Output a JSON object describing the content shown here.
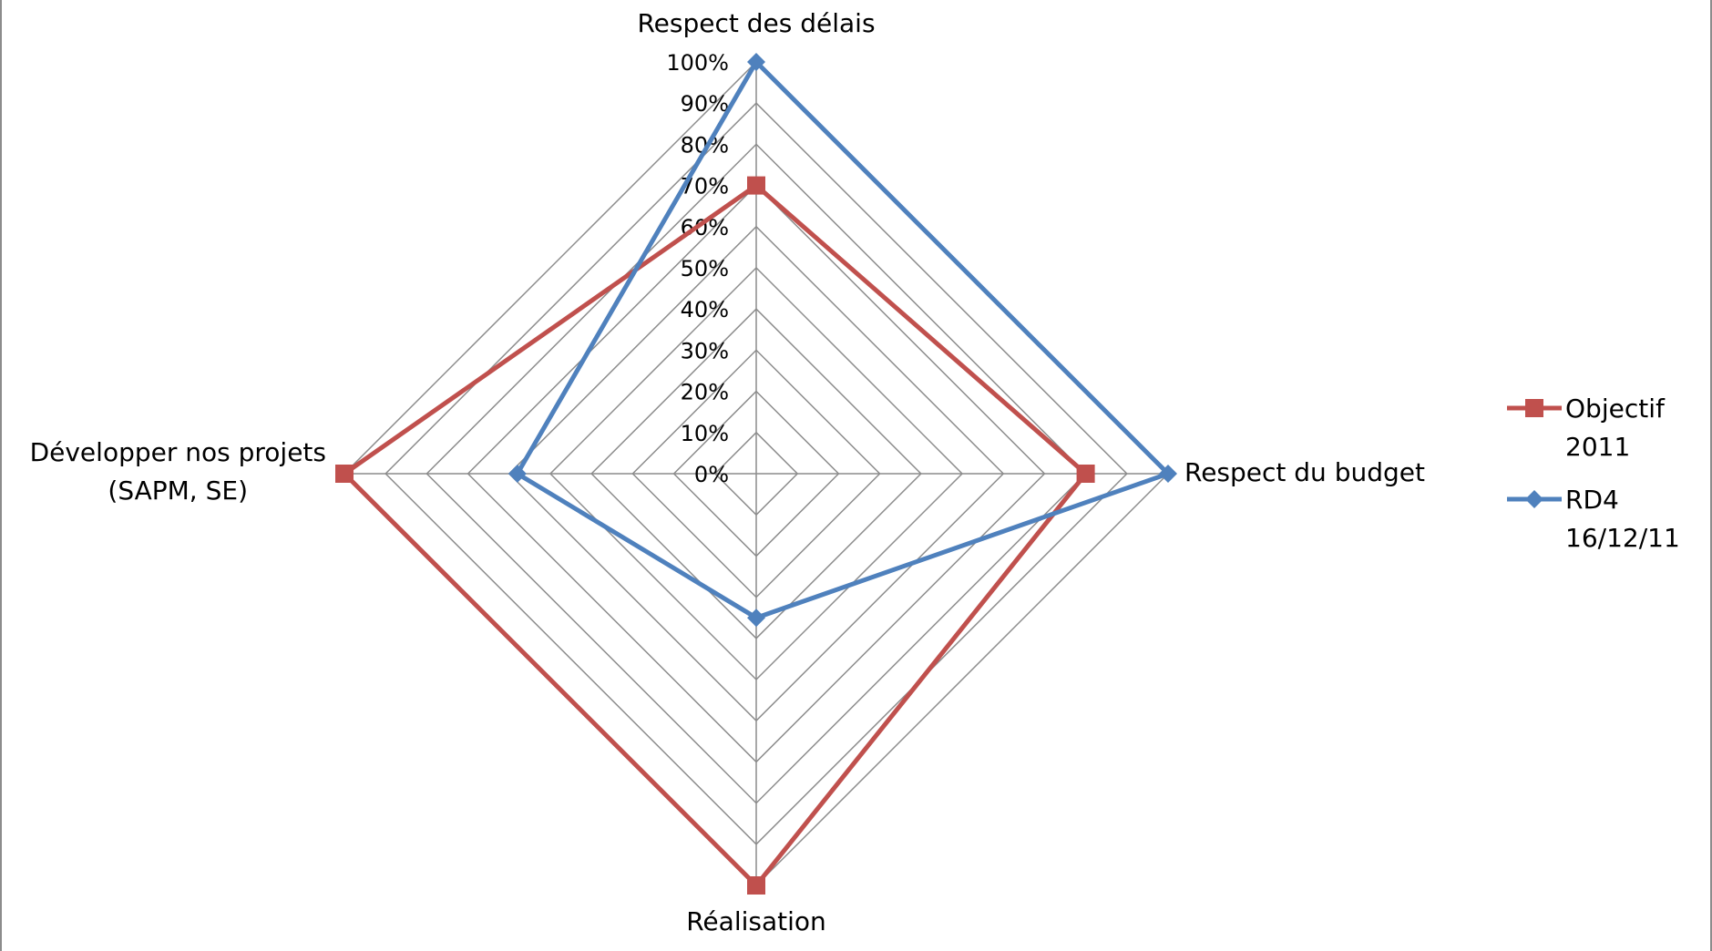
{
  "chart_data": {
    "type": "radar",
    "title": "",
    "categories": [
      [
        "Respect des délais"
      ],
      [
        "Respect du budget"
      ],
      [
        "Réalisation"
      ],
      [
        "Développer nos projets",
        "(SAPM, SE)"
      ]
    ],
    "range": [
      0,
      100
    ],
    "tick_step": 10,
    "tick_labels": [
      "0%",
      "10%",
      "20%",
      "30%",
      "40%",
      "50%",
      "60%",
      "70%",
      "80%",
      "90%",
      "100%"
    ],
    "grid": true,
    "legend_position": "right",
    "series": [
      {
        "name": [
          "Objectif",
          "2011"
        ],
        "values": [
          70,
          80,
          100,
          100
        ],
        "color": "#c0504d",
        "marker": "square"
      },
      {
        "name": [
          "RD4",
          "16/12/11"
        ],
        "values": [
          100,
          100,
          35,
          58
        ],
        "color": "#4f81bd",
        "marker": "diamond"
      }
    ]
  }
}
